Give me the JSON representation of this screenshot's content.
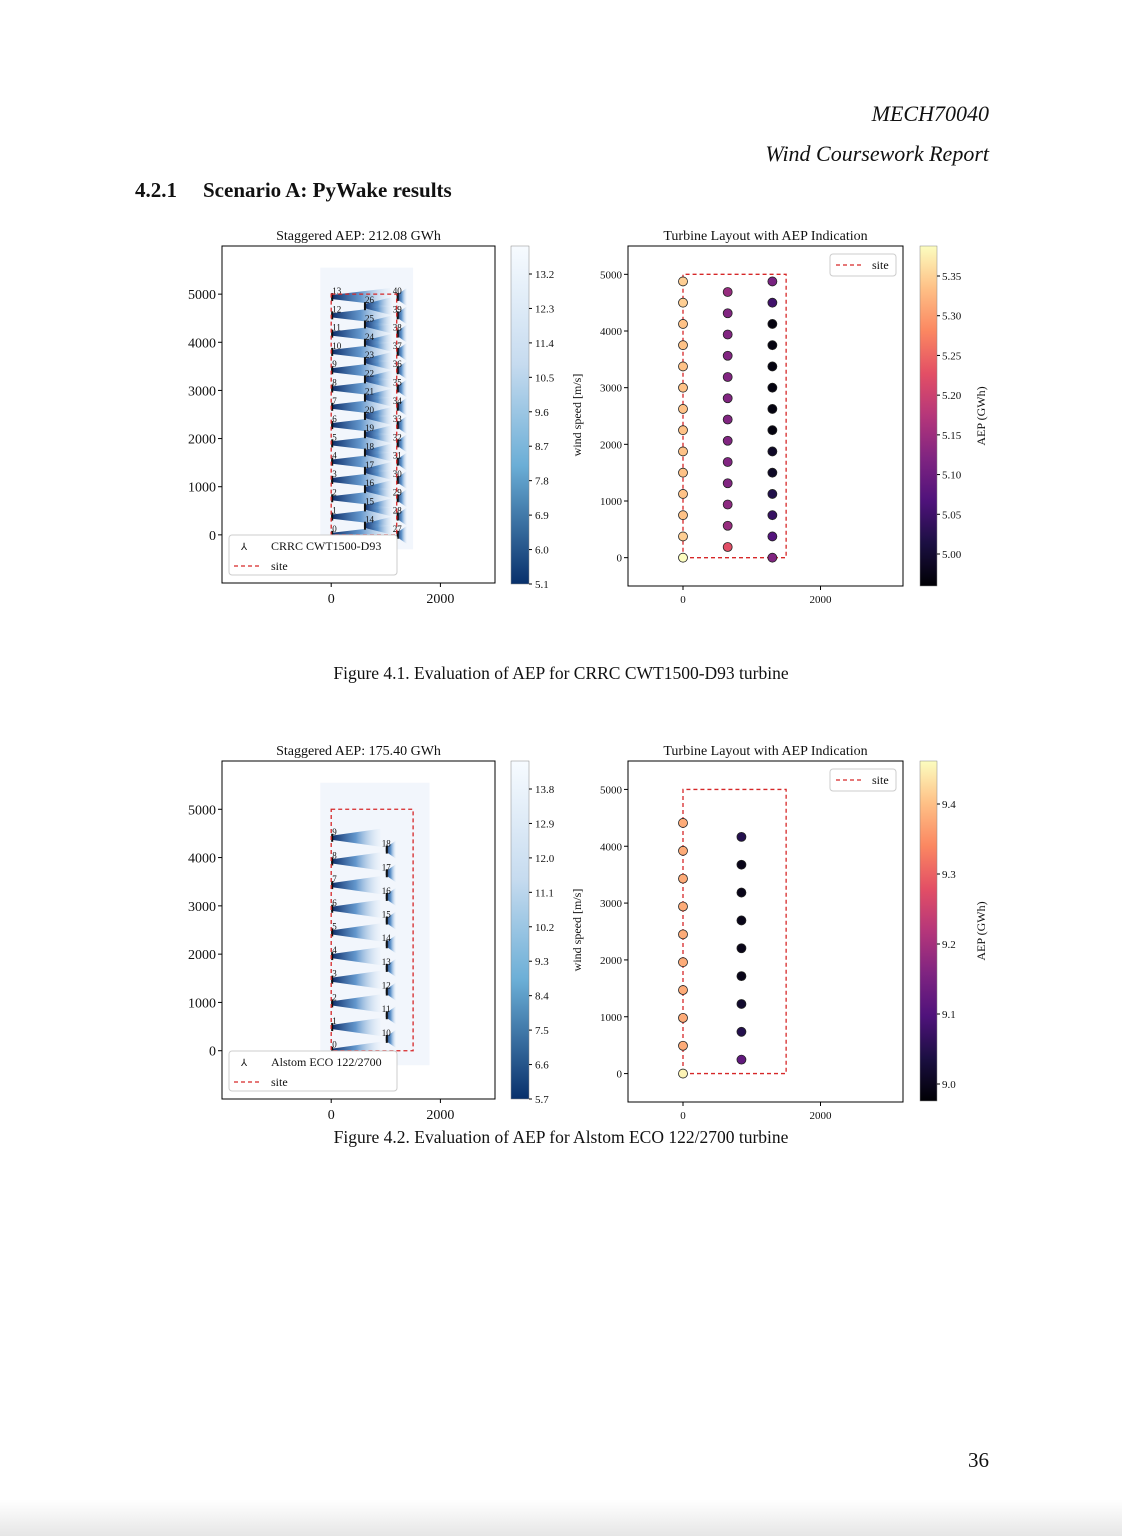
{
  "header": {
    "course": "MECH70040",
    "report": "Wind Coursework Report"
  },
  "section": {
    "number": "4.2.1",
    "title": "Scenario A: PyWake results"
  },
  "figures": [
    {
      "caption": "Figure 4.1. Evaluation of AEP for CRRC CWT1500-D93 turbine",
      "flow_map": {
        "title": "Staggered AEP: 212.08 GWh",
        "y_ticks": [
          "0",
          "1000",
          "2000",
          "3000",
          "4000",
          "5000"
        ],
        "x_ticks": [
          "0",
          "2000"
        ],
        "legend": [
          "CRRC CWT1500-D93",
          "site"
        ],
        "turbine_labels_left": [
          "0",
          "1",
          "2",
          "3",
          "4",
          "5",
          "6",
          "7",
          "8",
          "9",
          "10",
          "11",
          "12",
          "13"
        ],
        "turbine_labels_mid": [
          "14",
          "15",
          "16",
          "17",
          "18",
          "19",
          "20",
          "21",
          "22",
          "23",
          "24",
          "25",
          "26"
        ],
        "turbine_labels_right": [
          "27",
          "28",
          "29",
          "30",
          "31",
          "32",
          "33",
          "34",
          "35",
          "36",
          "37",
          "38",
          "39",
          "40"
        ],
        "colorbar_label": "wind speed [m/s]",
        "colorbar_ticks": [
          "13.2",
          "12.3",
          "11.4",
          "10.5",
          "9.6",
          "8.7",
          "7.8",
          "6.9",
          "6.0",
          "5.1"
        ]
      },
      "aep_map": {
        "title": "Turbine Layout with AEP Indication",
        "y_ticks": [
          "0",
          "1000",
          "2000",
          "3000",
          "4000",
          "5000"
        ],
        "x_ticks": [
          "0",
          "2000"
        ],
        "legend": "site",
        "colorbar_label": "AEP (GWh)",
        "colorbar_ticks": [
          "5.35",
          "5.30",
          "5.25",
          "5.20",
          "5.15",
          "5.10",
          "5.05",
          "5.00"
        ]
      }
    },
    {
      "caption": "Figure 4.2. Evaluation of AEP for Alstom ECO 122/2700 turbine",
      "flow_map": {
        "title": "Staggered AEP: 175.40 GWh",
        "y_ticks": [
          "0",
          "1000",
          "2000",
          "3000",
          "4000",
          "5000"
        ],
        "x_ticks": [
          "0",
          "2000"
        ],
        "legend": [
          "Alstom ECO 122/2700",
          "site"
        ],
        "turbine_labels_left": [
          "0",
          "1",
          "2",
          "3",
          "4",
          "5",
          "6",
          "7",
          "8",
          "9"
        ],
        "turbine_labels_right": [
          "10",
          "11",
          "12",
          "13",
          "14",
          "15",
          "16",
          "17",
          "18"
        ],
        "colorbar_label": "wind speed [m/s]",
        "colorbar_ticks": [
          "13.8",
          "12.9",
          "12.0",
          "11.1",
          "10.2",
          "9.3",
          "8.4",
          "7.5",
          "6.6",
          "5.7"
        ]
      },
      "aep_map": {
        "title": "Turbine Layout with AEP Indication",
        "y_ticks": [
          "0",
          "1000",
          "2000",
          "3000",
          "4000",
          "5000"
        ],
        "x_ticks": [
          "0",
          "2000"
        ],
        "legend": "site",
        "colorbar_label": "AEP (GWh)",
        "colorbar_ticks": [
          "9.4",
          "9.3",
          "9.2",
          "9.1",
          "9.0"
        ]
      }
    }
  ],
  "page_number": "36",
  "chart_data": [
    {
      "type": "scatter",
      "title": "Staggered AEP: 212.08 GWh",
      "xlabel": "",
      "ylabel": "",
      "xlim": [
        -2000,
        3000
      ],
      "ylim": [
        -1000,
        6000
      ],
      "site_rectangle": {
        "x": [
          0,
          1200
        ],
        "y": [
          0,
          5000
        ]
      },
      "turbines": {
        "x": [
          0,
          0,
          0,
          0,
          0,
          0,
          0,
          0,
          0,
          0,
          0,
          0,
          0,
          0,
          600,
          600,
          600,
          600,
          600,
          600,
          600,
          600,
          600,
          600,
          600,
          600,
          600,
          1200,
          1200,
          1200,
          1200,
          1200,
          1200,
          1200,
          1200,
          1200,
          1200,
          1200,
          1200,
          1200,
          1200
        ],
        "y": [
          0,
          380,
          760,
          1140,
          1520,
          1900,
          2280,
          2660,
          3040,
          3420,
          3800,
          4180,
          4560,
          4940,
          190,
          570,
          950,
          1330,
          1710,
          2090,
          2470,
          2850,
          3230,
          3610,
          3990,
          4370,
          4750,
          0,
          380,
          760,
          1140,
          1520,
          1900,
          2280,
          2660,
          3040,
          3420,
          3800,
          4180,
          4560,
          4940
        ]
      },
      "colorbar": {
        "label": "wind speed [m/s]",
        "range": [
          5.1,
          13.2
        ]
      }
    },
    {
      "type": "scatter",
      "title": "Turbine Layout with AEP Indication",
      "xlabel": "",
      "ylabel": "",
      "xlim": [
        -800,
        3200
      ],
      "ylim": [
        -500,
        5500
      ],
      "series": [
        {
          "name": "site",
          "x": [
            0,
            1500,
            1500,
            0,
            0
          ],
          "y": [
            0,
            0,
            5000,
            5000,
            0
          ]
        }
      ],
      "turbines": {
        "x": [
          0,
          0,
          0,
          0,
          0,
          0,
          0,
          0,
          0,
          0,
          0,
          0,
          0,
          0,
          650,
          650,
          650,
          650,
          650,
          650,
          650,
          650,
          650,
          650,
          650,
          650,
          650,
          1300,
          1300,
          1300,
          1300,
          1300,
          1300,
          1300,
          1300,
          1300,
          1300,
          1300,
          1300,
          1300,
          1300
        ],
        "y": [
          0,
          375,
          750,
          1125,
          1500,
          1875,
          2250,
          2625,
          3000,
          3375,
          3750,
          4125,
          4500,
          4875,
          188,
          563,
          938,
          1313,
          1688,
          2063,
          2438,
          2813,
          3188,
          3563,
          3938,
          4313,
          4688,
          0,
          375,
          750,
          1125,
          1500,
          1875,
          2250,
          2625,
          3000,
          3375,
          3750,
          4125,
          4500,
          4875
        ],
        "aep": [
          5.38,
          5.34,
          5.33,
          5.33,
          5.33,
          5.33,
          5.33,
          5.33,
          5.33,
          5.33,
          5.33,
          5.33,
          5.34,
          5.34,
          5.22,
          5.14,
          5.13,
          5.12,
          5.12,
          5.12,
          5.12,
          5.12,
          5.12,
          5.12,
          5.12,
          5.12,
          5.14,
          5.12,
          5.07,
          5.04,
          5.02,
          4.99,
          4.99,
          4.97,
          4.97,
          4.97,
          4.97,
          4.97,
          4.97,
          5.05,
          5.11
        ]
      },
      "colorbar": {
        "label": "AEP (GWh)",
        "range": [
          4.96,
          5.38
        ]
      }
    },
    {
      "type": "scatter",
      "title": "Staggered AEP: 175.40 GWh",
      "xlabel": "",
      "ylabel": "",
      "xlim": [
        -2000,
        3000
      ],
      "ylim": [
        -1000,
        6000
      ],
      "site_rectangle": {
        "x": [
          0,
          1500
        ],
        "y": [
          0,
          5000
        ]
      },
      "turbines": {
        "x": [
          0,
          0,
          0,
          0,
          0,
          0,
          0,
          0,
          0,
          0,
          1000,
          1000,
          1000,
          1000,
          1000,
          1000,
          1000,
          1000,
          1000
        ],
        "y": [
          0,
          490,
          980,
          1470,
          1960,
          2450,
          2940,
          3430,
          3920,
          4410,
          245,
          735,
          1225,
          1715,
          2205,
          2695,
          3185,
          3675,
          4165
        ]
      },
      "colorbar": {
        "label": "wind speed [m/s]",
        "range": [
          5.7,
          13.8
        ]
      }
    },
    {
      "type": "scatter",
      "title": "Turbine Layout with AEP Indication",
      "xlabel": "",
      "ylabel": "",
      "xlim": [
        -800,
        3200
      ],
      "ylim": [
        -500,
        5500
      ],
      "series": [
        {
          "name": "site",
          "x": [
            0,
            1500,
            1500,
            0,
            0
          ],
          "y": [
            0,
            0,
            5000,
            5000,
            0
          ]
        }
      ],
      "turbines": {
        "x": [
          0,
          0,
          0,
          0,
          0,
          0,
          0,
          0,
          0,
          0,
          850,
          850,
          850,
          850,
          850,
          850,
          850,
          850,
          850
        ],
        "y": [
          0,
          490,
          980,
          1470,
          1960,
          2450,
          2940,
          3430,
          3920,
          4410,
          245,
          735,
          1225,
          1715,
          2205,
          2695,
          3185,
          3675,
          4165
        ],
        "aep": [
          9.44,
          9.37,
          9.37,
          9.37,
          9.37,
          9.37,
          9.37,
          9.37,
          9.37,
          9.37,
          9.12,
          9.05,
          9.02,
          9.0,
          9.0,
          9.0,
          9.0,
          9.0,
          9.05
        ]
      },
      "colorbar": {
        "label": "AEP (GWh)",
        "range": [
          8.98,
          9.45
        ]
      }
    }
  ]
}
